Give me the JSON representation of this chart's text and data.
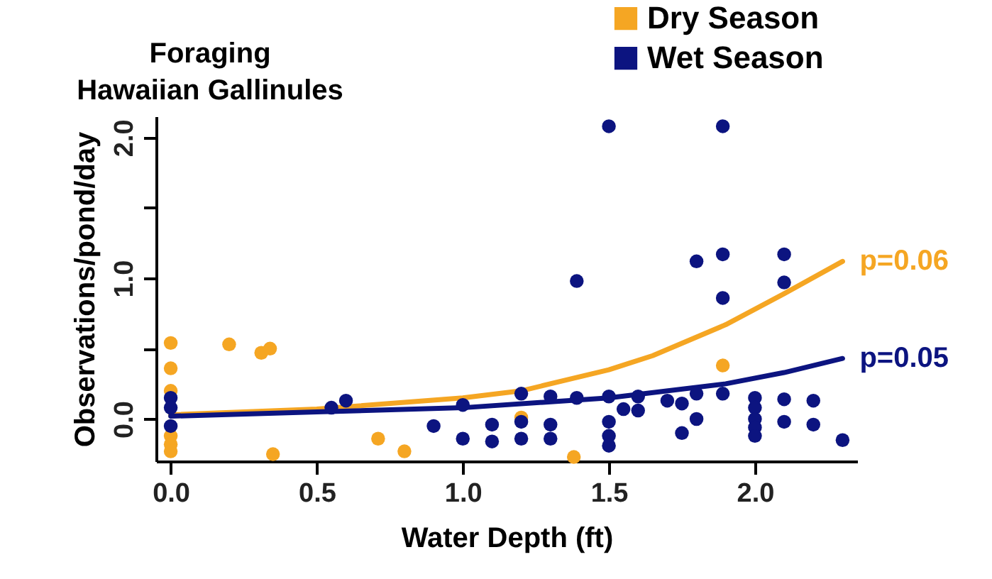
{
  "chart_data": {
    "type": "scatter",
    "title": "Foraging\nHawaiian Gallinules",
    "xlabel": "Water Depth (ft)",
    "ylabel": "Observations/pond/day",
    "xlim": [
      -0.05,
      2.35
    ],
    "ylim": [
      -0.3,
      2.15
    ],
    "xticks": [
      {
        "value": 0,
        "label": "0.0"
      },
      0.5,
      {
        "value": 1,
        "label": "1.0"
      },
      1.5,
      {
        "value": 2,
        "label": "2.0"
      }
    ],
    "yticks": [
      {
        "value": 0,
        "label": "0.0"
      },
      {
        "value": 0.5,
        "label": null
      },
      {
        "value": 1,
        "label": "1.0"
      },
      {
        "value": 1.5,
        "label": null
      },
      {
        "value": 2,
        "label": "2.0"
      }
    ],
    "grid": false,
    "legend": "top right",
    "marker": "circle",
    "series": [
      {
        "name": "Dry Season",
        "color": "#f5a623",
        "x": [
          0,
          0,
          0,
          0,
          0,
          0,
          0.2,
          0.31,
          0.34,
          0.35,
          0.71,
          0.8,
          1.2,
          1.38,
          1.89
        ],
        "values": [
          0.54,
          0.36,
          0.2,
          -0.12,
          -0.18,
          -0.23,
          0.53,
          0.47,
          0.5,
          -0.25,
          -0.14,
          -0.23,
          0.01,
          -0.27,
          0.38
        ]
      },
      {
        "name": "Wet Season",
        "color": "#0c1480",
        "x": [
          0,
          0,
          0,
          0.55,
          0.6,
          0.9,
          1.0,
          1.0,
          1.5,
          1.89,
          1.39,
          1.8,
          1.89,
          1.89,
          2.1,
          2.1,
          1.2,
          1.3,
          1.39,
          1.5,
          1.6,
          1.7,
          1.8,
          1.89,
          2.1,
          2.2,
          1.55,
          1.6,
          1.75,
          1.1,
          1.2,
          1.3,
          1.5,
          1.8,
          2.1,
          2.2,
          2.0,
          2.0,
          2.0,
          2.0,
          2.0,
          1.1,
          1.2,
          1.3,
          1.5,
          1.5,
          1.75,
          2.3
        ],
        "values": [
          0.15,
          0.08,
          -0.05,
          0.08,
          0.13,
          -0.05,
          -0.14,
          0.1,
          2.08,
          2.08,
          0.98,
          1.12,
          1.17,
          0.86,
          1.17,
          0.97,
          0.18,
          0.16,
          0.15,
          0.16,
          0.16,
          0.13,
          0.18,
          0.18,
          0.14,
          0.13,
          0.07,
          0.06,
          0.11,
          -0.04,
          -0.02,
          -0.04,
          -0.02,
          0,
          -0.02,
          -0.04,
          0.15,
          0.08,
          0,
          -0.06,
          -0.12,
          -0.16,
          -0.14,
          -0.14,
          -0.12,
          -0.19,
          -0.1,
          -0.15
        ]
      },
      {
        "type": "line",
        "marker": "none",
        "color": "#f5a623",
        "x": [
          0,
          0.5,
          1.0,
          1.2,
          1.5,
          1.65,
          1.9,
          2.1,
          2.3
        ],
        "values": [
          0.03,
          0.07,
          0.15,
          0.2,
          0.35,
          0.45,
          0.67,
          0.89,
          1.12
        ]
      },
      {
        "type": "line",
        "marker": "none",
        "color": "#0c1480",
        "x": [
          0,
          0.5,
          1.0,
          1.5,
          1.9,
          2.1,
          2.3
        ],
        "values": [
          0.02,
          0.05,
          0.08,
          0.15,
          0.25,
          0.33,
          0.43
        ]
      }
    ],
    "annotations": [
      {
        "text": "p=0.06",
        "x": 2.3,
        "y": 1.12
      },
      {
        "text": "p=0.05",
        "x": 2.3,
        "y": 0.43
      }
    ]
  }
}
